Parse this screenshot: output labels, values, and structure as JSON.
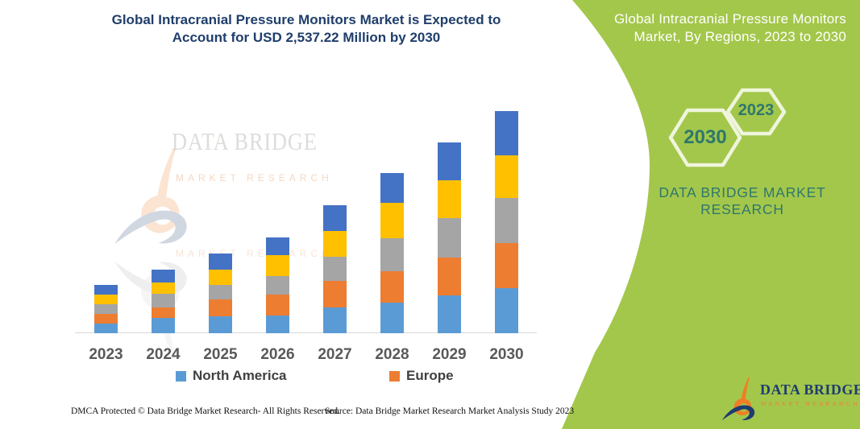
{
  "title": {
    "line1": "Global Intracranial Pressure Monitors Market is Expected to",
    "line2": "Account for USD 2,537.22 Million by 2030"
  },
  "side_panel": {
    "title_line1": "Global Intracranial Pressure Monitors",
    "title_line2": "Market, By Regions, 2023 to 2030",
    "hexagon_2030_label": "2030",
    "hexagon_2023_label": "2023",
    "brand_line1": "DATA BRIDGE MARKET",
    "brand_line2": "RESEARCH"
  },
  "watermark": {
    "line1": "DATA BRIDGE",
    "line2": "MARKET RESEARCH",
    "line3": "MARKET RESEARCH"
  },
  "logo": {
    "name": "DATA BRIDGE",
    "subname": "MARKET RESEARCH"
  },
  "chart_data": {
    "type": "bar",
    "stacked": true,
    "title": "Global Intracranial Pressure Monitors Market, By Regions, 2023 to 2030",
    "categories": [
      "2023",
      "2024",
      "2025",
      "2026",
      "2027",
      "2028",
      "2029",
      "2030"
    ],
    "series": [
      {
        "name": "North America",
        "color": "#5B9BD5",
        "values": [
          12,
          19,
          21,
          22,
          32,
          38,
          47,
          56
        ]
      },
      {
        "name": "Europe",
        "color": "#ED7D31",
        "values": [
          12,
          13,
          21,
          26,
          33,
          39,
          47,
          56
        ]
      },
      {
        "name": "unlabeled-gray-region",
        "color": "#A5A5A5",
        "values": [
          12,
          17,
          18,
          23,
          30,
          41,
          49,
          56
        ]
      },
      {
        "name": "unlabeled-yellow-region",
        "color": "#FFC000",
        "values": [
          12,
          14,
          19,
          26,
          32,
          44,
          47,
          53
        ]
      },
      {
        "name": "unlabeled-darkblue-region",
        "color": "#4472C4",
        "values": [
          12,
          16,
          20,
          22,
          32,
          37,
          47,
          55
        ]
      }
    ],
    "stack_totals_relative": [
      60,
      79,
      99,
      119,
      159,
      199,
      237,
      276
    ],
    "value_axis": "hidden (no numeric scale shown)",
    "units": "relative bar height units",
    "annotation": "Market expected to account for USD 2,537.22 Million by 2030",
    "xlabel": "",
    "ylabel": "",
    "grid": false,
    "legend_position": "bottom",
    "legend_visible_entries": [
      "North America",
      "Europe"
    ]
  },
  "legend": [
    {
      "label": "North America",
      "color": "#5B9BD5"
    },
    {
      "label": "Europe",
      "color": "#ED7D31"
    }
  ],
  "footer": {
    "left": "DMCA Protected © Data Bridge Market Research-  All Rights Reserved.",
    "right": "Source: Data Bridge Market Research  Market Analysis Study 2023"
  },
  "colors": {
    "panel_green": "#A3C74B",
    "hex_stroke": "#EFF5DC",
    "teal": "#2F776D",
    "title_navy": "#1F3E6B",
    "label_gray": "#595959",
    "axis_gray": "#D9D9D9",
    "logo_navy": "#1E3C70",
    "logo_orange": "#F07E26"
  }
}
